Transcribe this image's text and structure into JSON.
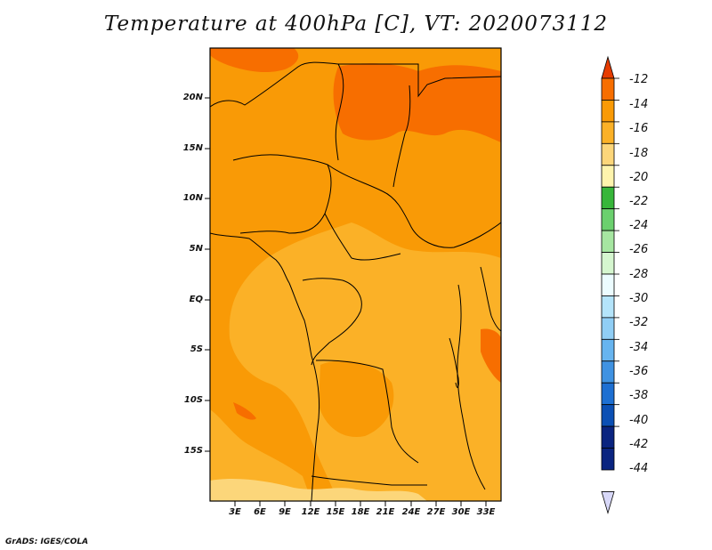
{
  "title": "Temperature at 400hPa [C], VT: 2020073112",
  "credit": "GrADS: IGES/COLA",
  "map": {
    "lat_ticks": [
      "20N",
      "15N",
      "10N",
      "5N",
      "EQ",
      "5S",
      "10S",
      "15S"
    ],
    "lon_ticks": [
      "3E",
      "6E",
      "9E",
      "12E",
      "15E",
      "18E",
      "21E",
      "24E",
      "27E",
      "30E",
      "33E"
    ]
  },
  "colorbar": {
    "labels": [
      "-12",
      "-14",
      "-16",
      "-18",
      "-20",
      "-22",
      "-24",
      "-26",
      "-28",
      "-30",
      "-32",
      "-34",
      "-36",
      "-38",
      "-40",
      "-42",
      "-44"
    ],
    "colors": [
      "#e63c00",
      "#f76e00",
      "#f99a06",
      "#fbb127",
      "#fcd67a",
      "#fef4ad",
      "#37b63a",
      "#6bd06e",
      "#a6e6a1",
      "#d5f6cf",
      "#ecfcff",
      "#b4e4fa",
      "#90cef5",
      "#67b4ef",
      "#3f92e2",
      "#1d6fd2",
      "#0b4fb4",
      "#0a2480",
      "#d8d8f8"
    ]
  }
}
